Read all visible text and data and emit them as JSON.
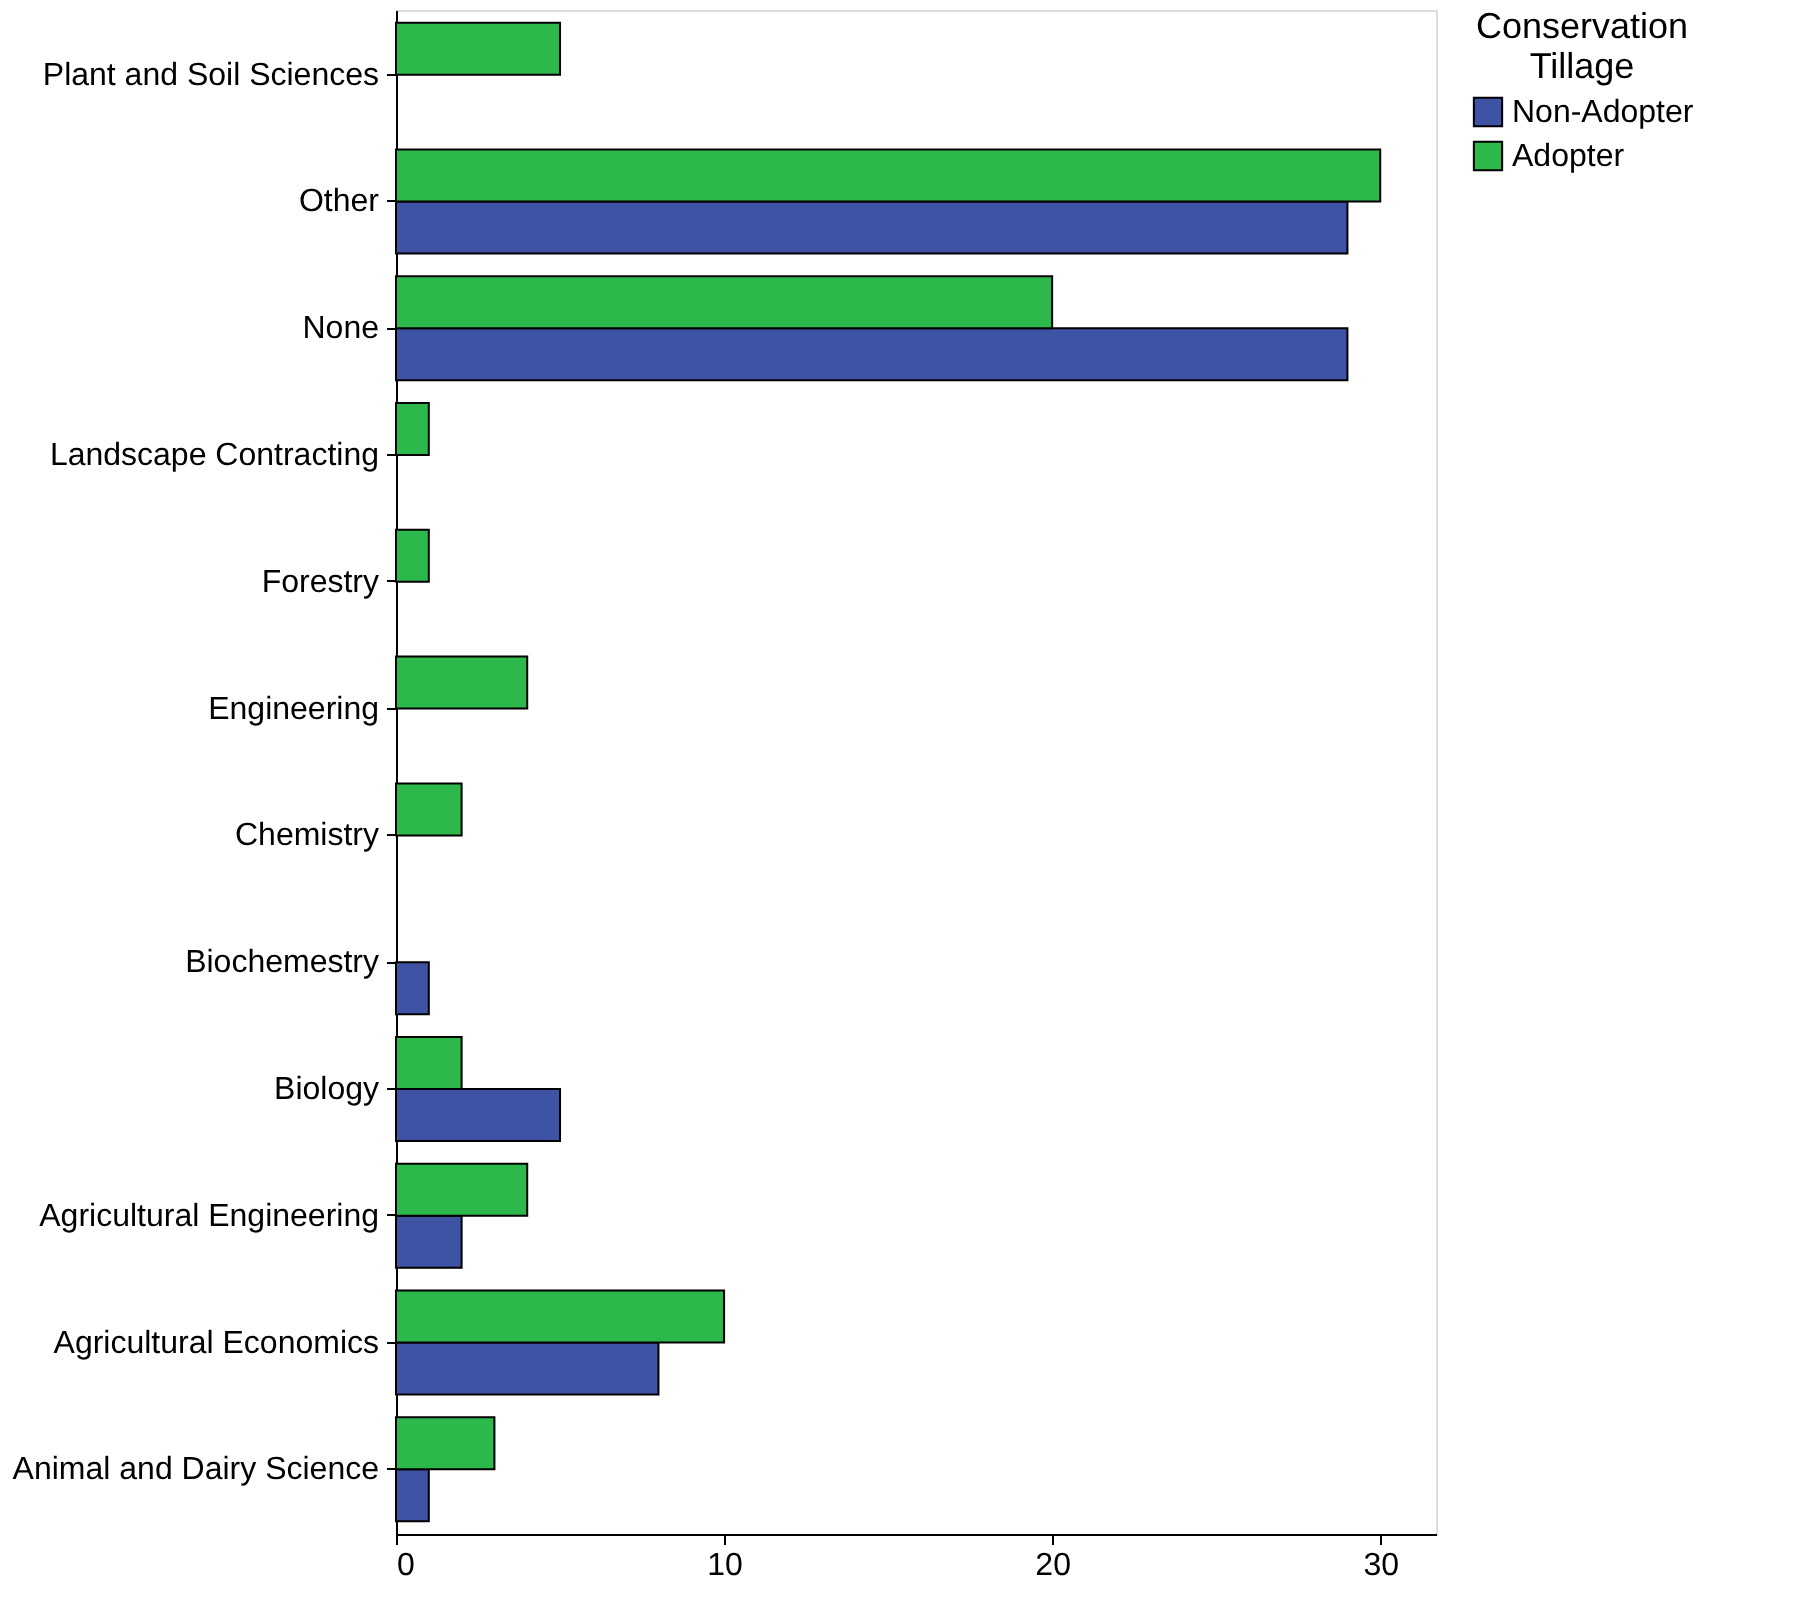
{
  "chart_data": {
    "type": "bar",
    "orientation": "horizontal",
    "legend_title": "Conservation Tillage",
    "legend": "right",
    "grid": false,
    "categories": [
      "Plant and Soil Sciences",
      "Other",
      "None",
      "Landscape Contracting",
      "Forestry",
      "Engineering",
      "Chemistry",
      "Biochemestry",
      "Biology",
      "Agricultural Engineering",
      "Agricultural Economics",
      "Animal and Dairy Science"
    ],
    "series": [
      {
        "name": "Non-Adopter",
        "color": "#3e53a4",
        "values": [
          null,
          29,
          29,
          null,
          null,
          null,
          null,
          1,
          5,
          2,
          8,
          1
        ]
      },
      {
        "name": "Adopter",
        "color": "#2db84b",
        "values": [
          5,
          30,
          20,
          1,
          1,
          4,
          2,
          null,
          2,
          4,
          10,
          3
        ]
      }
    ],
    "xlim": [
      0,
      31.7
    ],
    "xticks": [
      0,
      10,
      20,
      30
    ]
  }
}
